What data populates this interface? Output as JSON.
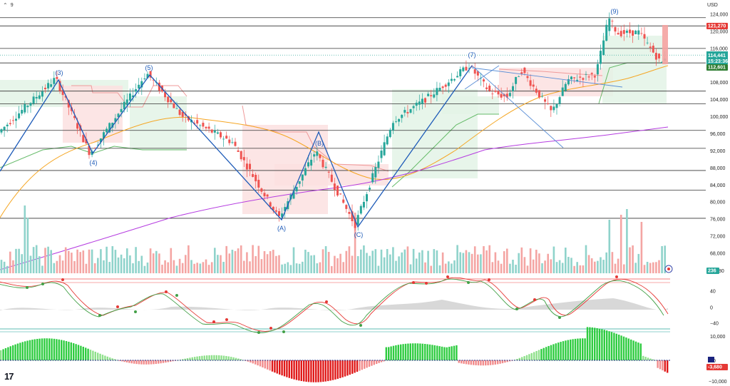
{
  "header": {
    "menu_label": "9",
    "currency": "USD"
  },
  "logo_text": "17",
  "colors": {
    "up": "#26a69a",
    "down": "#ef5350",
    "price_line": "#08998a",
    "wave": "#1e5bb8",
    "ma_short": "#f5a623",
    "ma_long": "#b53ce0",
    "cloud_up": "#e3f3e6",
    "cloud_down": "#fbe0e0"
  },
  "price_axis": {
    "ticks": [
      "124,000",
      "120,000",
      "116,000",
      "112,000",
      "108,000",
      "104,000",
      "100,000",
      "96,000",
      "92,000",
      "88,000",
      "84,000",
      "80,000",
      "76,000",
      "72,000",
      "68,000"
    ]
  },
  "badges": {
    "resistance": "121,270",
    "last_price": "114,441",
    "countdown": "15:23:36",
    "support": "112,601",
    "volume": "236",
    "macd": "-3,680"
  },
  "osc_axis": {
    "ticks": [
      "80",
      "40",
      "0",
      "−40"
    ]
  },
  "macd_axis": {
    "ticks": [
      "10,000",
      "0",
      "−10,000"
    ]
  },
  "wave_labels": [
    "(3)",
    "(4)",
    "(5)",
    "(A)",
    "(B)",
    "(C)",
    "(7)",
    "(9)"
  ],
  "chart_data": {
    "type": "candlestick",
    "y_unit": "USD",
    "ylim": [
      66000,
      126000
    ],
    "horizontal_levels": [
      123200,
      121270,
      116000,
      112601,
      106000,
      103000,
      96800,
      92600,
      87400,
      82800,
      76200
    ],
    "elliott_waves": [
      {
        "label": "(3)",
        "price": 108900
      },
      {
        "label": "(4)",
        "price": 91400
      },
      {
        "label": "(5)",
        "price": 109900
      },
      {
        "label": "(A)",
        "price": 76300
      },
      {
        "label": "(B)",
        "price": 92000
      },
      {
        "label": "(C)",
        "price": 74600
      },
      {
        "label": "(7)",
        "price": 111900
      },
      {
        "label": "(9)",
        "price": 123200
      }
    ],
    "ohlc_sample": [
      {
        "o": 94500,
        "h": 97000,
        "l": 92000,
        "c": 96200
      },
      {
        "o": 96200,
        "h": 98500,
        "l": 95200,
        "c": 97800
      },
      {
        "o": 97800,
        "h": 101500,
        "l": 96800,
        "c": 100800
      },
      {
        "o": 100800,
        "h": 104500,
        "l": 99500,
        "c": 103600
      },
      {
        "o": 103600,
        "h": 106500,
        "l": 102200,
        "c": 105200
      },
      {
        "o": 105200,
        "h": 108900,
        "l": 103800,
        "c": 107500
      },
      {
        "o": 107500,
        "h": 108500,
        "l": 101000,
        "c": 101800
      },
      {
        "o": 101800,
        "h": 102800,
        "l": 95500,
        "c": 96300
      },
      {
        "o": 96300,
        "h": 97500,
        "l": 91400,
        "c": 92800
      },
      {
        "o": 92800,
        "h": 98200,
        "l": 92300,
        "c": 97600
      },
      {
        "o": 97600,
        "h": 103500,
        "l": 96900,
        "c": 102700
      },
      {
        "o": 102700,
        "h": 108400,
        "l": 101900,
        "c": 107200
      },
      {
        "o": 107200,
        "h": 109900,
        "l": 105000,
        "c": 106100
      },
      {
        "o": 106100,
        "h": 107000,
        "l": 100500,
        "c": 101300
      },
      {
        "o": 101300,
        "h": 102500,
        "l": 96500,
        "c": 97200
      },
      {
        "o": 97200,
        "h": 98300,
        "l": 95200,
        "c": 96000
      },
      {
        "o": 96000,
        "h": 97200,
        "l": 93500,
        "c": 94300
      },
      {
        "o": 94300,
        "h": 95000,
        "l": 88000,
        "c": 88700
      },
      {
        "o": 88700,
        "h": 89500,
        "l": 82000,
        "c": 82800
      },
      {
        "o": 82800,
        "h": 83800,
        "l": 76300,
        "c": 78300
      },
      {
        "o": 78300,
        "h": 84000,
        "l": 77500,
        "c": 83200
      },
      {
        "o": 83200,
        "h": 87800,
        "l": 82500,
        "c": 86900
      },
      {
        "o": 86900,
        "h": 92000,
        "l": 86000,
        "c": 90200
      },
      {
        "o": 90200,
        "h": 91000,
        "l": 84500,
        "c": 85300
      },
      {
        "o": 85300,
        "h": 86200,
        "l": 80200,
        "c": 81000
      },
      {
        "o": 81000,
        "h": 81800,
        "l": 74600,
        "c": 76200
      },
      {
        "o": 76200,
        "h": 84200,
        "l": 75500,
        "c": 83400
      },
      {
        "o": 83400,
        "h": 86500,
        "l": 82600,
        "c": 85700
      },
      {
        "o": 85700,
        "h": 93800,
        "l": 85000,
        "c": 93100
      },
      {
        "o": 93100,
        "h": 97600,
        "l": 92400,
        "c": 96900
      },
      {
        "o": 96900,
        "h": 103200,
        "l": 96000,
        "c": 102500
      },
      {
        "o": 102500,
        "h": 106800,
        "l": 101700,
        "c": 106000
      },
      {
        "o": 106000,
        "h": 111900,
        "l": 105200,
        "c": 110500
      },
      {
        "o": 110500,
        "h": 111200,
        "l": 104500,
        "c": 105200
      },
      {
        "o": 105200,
        "h": 106000,
        "l": 100500,
        "c": 101400
      },
      {
        "o": 101400,
        "h": 110500,
        "l": 100800,
        "c": 108600
      },
      {
        "o": 108600,
        "h": 109500,
        "l": 103500,
        "c": 104300
      },
      {
        "o": 104300,
        "h": 108200,
        "l": 99000,
        "c": 107400
      },
      {
        "o": 107400,
        "h": 109800,
        "l": 106200,
        "c": 108800
      },
      {
        "o": 108800,
        "h": 110300,
        "l": 107000,
        "c": 109500
      },
      {
        "o": 109500,
        "h": 119000,
        "l": 108900,
        "c": 118200
      },
      {
        "o": 118200,
        "h": 123200,
        "l": 117000,
        "c": 119600
      },
      {
        "o": 119600,
        "h": 121000,
        "l": 117200,
        "c": 118400
      },
      {
        "o": 118400,
        "h": 120700,
        "l": 116800,
        "c": 119800
      },
      {
        "o": 119800,
        "h": 120400,
        "l": 115500,
        "c": 116300
      },
      {
        "o": 116300,
        "h": 117200,
        "l": 112000,
        "c": 112700
      },
      {
        "o": 112700,
        "h": 115000,
        "l": 112400,
        "c": 114441
      }
    ]
  }
}
